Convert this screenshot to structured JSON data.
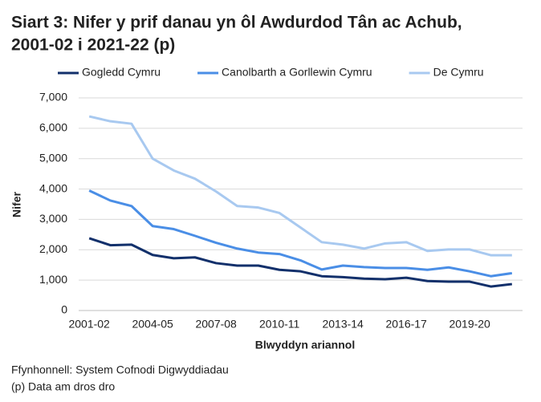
{
  "chart_data": {
    "type": "line",
    "title": [
      "Siart 3: Nifer y prif danau yn ôl Awdurdod Tân ac Achub,",
      "2001-02 i 2021-22 (p)"
    ],
    "x_label": "Blwyddyn ariannol",
    "y_label": "Nifer",
    "categories": [
      "2001-02",
      null,
      null,
      "2004-05",
      null,
      null,
      "2007-08",
      null,
      null,
      "2010-11",
      null,
      null,
      "2013-14",
      null,
      null,
      "2016-17",
      null,
      null,
      "2019-20",
      null,
      null
    ],
    "series": [
      {
        "name": "Gogledd Cymru",
        "color": "#12306b",
        "values": [
          2380,
          2150,
          2170,
          1830,
          1720,
          1750,
          1560,
          1480,
          1480,
          1340,
          1290,
          1130,
          1100,
          1050,
          1030,
          1080,
          970,
          950,
          950,
          790,
          870
        ]
      },
      {
        "name": "Canolbarth a Gorllewin Cymru",
        "color": "#4a8ee6",
        "values": [
          3950,
          3620,
          3440,
          2780,
          2680,
          2460,
          2230,
          2040,
          1910,
          1860,
          1650,
          1350,
          1480,
          1430,
          1400,
          1400,
          1340,
          1420,
          1290,
          1130,
          1230
        ]
      },
      {
        "name": "De Cymru",
        "color": "#a8c9f0",
        "values": [
          6390,
          6230,
          6150,
          5000,
          4610,
          4340,
          3920,
          3440,
          3390,
          3210,
          2730,
          2250,
          2170,
          2040,
          2210,
          2250,
          1960,
          2010,
          2010,
          1820,
          1820
        ]
      }
    ],
    "ylim": [
      0,
      7000
    ],
    "yticks": [
      0,
      {
        "value": 1000,
        "label": "1,000"
      },
      {
        "value": 2000,
        "label": "2,000"
      },
      {
        "value": 3000,
        "label": "3,000"
      },
      {
        "value": 4000,
        "label": "4,000"
      },
      {
        "value": 5000,
        "label": "5,000"
      },
      {
        "value": 6000,
        "label": "6,000"
      },
      {
        "value": 7000,
        "label": "7,000"
      }
    ],
    "grid": true,
    "legend": "top",
    "source": "Ffynhonnell: System Cofnodi Digwyddiadau",
    "note": "(p) Data am dros dro"
  }
}
